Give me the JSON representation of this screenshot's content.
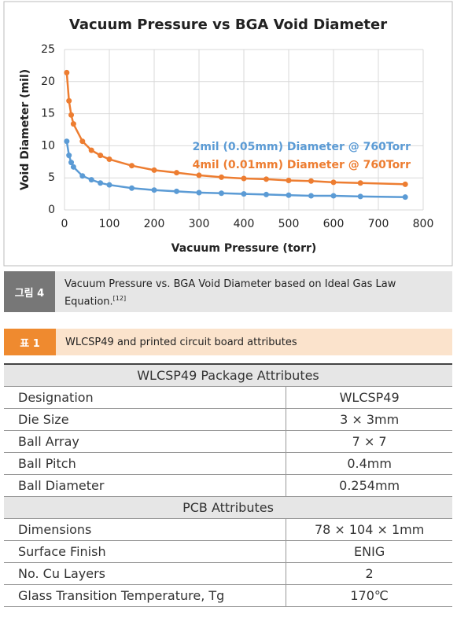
{
  "chart_data": {
    "type": "line",
    "title": "Vacuum Pressure vs BGA Void Diameter",
    "x_label": "Vacuum Pressure (torr)",
    "y_label": "Void Diameter (mil)",
    "x": [
      5,
      10,
      15,
      20,
      40,
      60,
      80,
      100,
      150,
      200,
      250,
      300,
      350,
      400,
      450,
      500,
      550,
      600,
      660,
      760
    ],
    "series": [
      {
        "name": "2mil (0.05mm) Diameter @ 760Torr",
        "color": "#5b9bd5",
        "values": [
          10.7,
          8.5,
          7.4,
          6.7,
          5.3,
          4.7,
          4.2,
          3.9,
          3.4,
          3.1,
          2.9,
          2.7,
          2.6,
          2.5,
          2.4,
          2.3,
          2.2,
          2.2,
          2.1,
          2.0
        ]
      },
      {
        "name": "4mil (0.01mm) Diameter @ 760Torr",
        "color": "#ed7d31",
        "values": [
          21.4,
          17.0,
          14.8,
          13.4,
          10.7,
          9.3,
          8.5,
          7.9,
          6.9,
          6.2,
          5.8,
          5.4,
          5.1,
          4.9,
          4.8,
          4.6,
          4.5,
          4.3,
          4.2,
          4.0
        ]
      }
    ],
    "xlim": [
      0,
      800
    ],
    "xticks": [
      0,
      100,
      200,
      300,
      400,
      500,
      600,
      700,
      800
    ],
    "ylim": [
      0,
      25
    ],
    "yticks": [
      0,
      5,
      10,
      15,
      20,
      25
    ],
    "grid": true,
    "legend": "right"
  },
  "figure_caption": {
    "label": "그림 4",
    "text": "Vacuum Pressure vs. BGA Void Diameter based on Ideal Gas Law Equation.",
    "ref": "[12]"
  },
  "table_caption": {
    "label": "표 1",
    "text": "WLCSP49 and printed circuit board attributes"
  },
  "table": {
    "sections": [
      {
        "title": "WLCSP49 Package Attributes",
        "rows": [
          [
            "Designation",
            "WLCSP49"
          ],
          [
            "Die Size",
            "3 × 3mm"
          ],
          [
            "Ball Array",
            "7 × 7"
          ],
          [
            "Ball Pitch",
            "0.4mm"
          ],
          [
            "Ball Diameter",
            "0.254mm"
          ]
        ]
      },
      {
        "title": "PCB Attributes",
        "rows": [
          [
            "Dimensions",
            "78 × 104 × 1mm"
          ],
          [
            "Surface Finish",
            "ENIG"
          ],
          [
            "No. Cu Layers",
            "2"
          ],
          [
            "Glass Transition Temperature, Tg",
            "170℃"
          ]
        ]
      }
    ]
  }
}
